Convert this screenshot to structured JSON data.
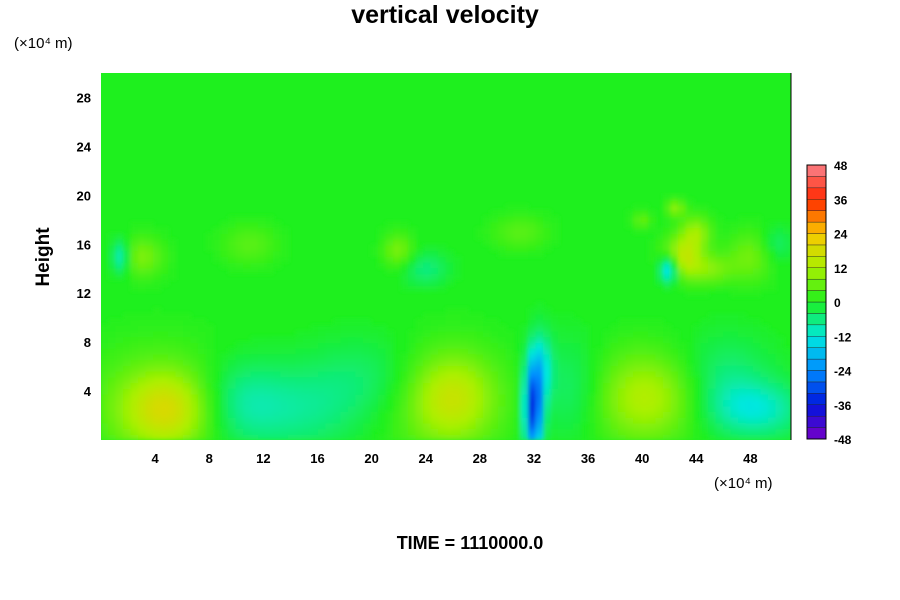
{
  "chart_data": {
    "type": "heatmap",
    "title": "vertical velocity",
    "ylabel": "Height",
    "xlabel": "",
    "x_unit": "(×10⁴ m)",
    "y_unit": "(×10⁴ m)",
    "xlim": [
      0,
      51
    ],
    "ylim": [
      0,
      30
    ],
    "x_ticks": [
      4,
      8,
      12,
      16,
      20,
      24,
      28,
      32,
      36,
      40,
      44,
      48
    ],
    "y_ticks": [
      4,
      8,
      12,
      16,
      20,
      24,
      28
    ],
    "colorbar": {
      "range": [
        -48,
        48
      ],
      "ticks": [
        48,
        36,
        24,
        12,
        0,
        -12,
        -24,
        -36,
        -48
      ]
    },
    "background_value": 0,
    "features": [
      {
        "x": 5,
        "y": 2.5,
        "value": 14,
        "sx": 2.4,
        "sy": 2.2
      },
      {
        "x": 4.5,
        "y": 3,
        "value": 6,
        "sx": 4,
        "sy": 3.5
      },
      {
        "x": 26,
        "y": 3.5,
        "value": 12,
        "sx": 2.2,
        "sy": 2.5
      },
      {
        "x": 25,
        "y": 3,
        "value": 5,
        "sx": 3.5,
        "sy": 3.5
      },
      {
        "x": 41,
        "y": 3.5,
        "value": 10,
        "sx": 2.5,
        "sy": 2.5
      },
      {
        "x": 38,
        "y": 3.5,
        "value": 5,
        "sx": 3,
        "sy": 3
      },
      {
        "x": 32,
        "y": 2.5,
        "value": -34,
        "sx": 0.45,
        "sy": 2.5
      },
      {
        "x": 32.5,
        "y": 6,
        "value": -12,
        "sx": 0.6,
        "sy": 2
      },
      {
        "x": 10,
        "y": 3,
        "value": -9,
        "sx": 2.5,
        "sy": 2.5
      },
      {
        "x": 15,
        "y": 2.5,
        "value": -6,
        "sx": 3,
        "sy": 2.5
      },
      {
        "x": 20,
        "y": 5,
        "value": -5,
        "sx": 3,
        "sy": 2.5
      },
      {
        "x": 35,
        "y": 4,
        "value": -7,
        "sx": 1.8,
        "sy": 3
      },
      {
        "x": 48.5,
        "y": 2.5,
        "value": -10,
        "sx": 2.5,
        "sy": 1.6
      },
      {
        "x": 46,
        "y": 5,
        "value": -6,
        "sx": 2.5,
        "sy": 2.5
      },
      {
        "x": 1.5,
        "y": 15,
        "value": -12,
        "sx": 0.5,
        "sy": 1
      },
      {
        "x": 3,
        "y": 15,
        "value": 8,
        "sx": 1.2,
        "sy": 1.2
      },
      {
        "x": 11,
        "y": 16,
        "value": 5,
        "sx": 1.5,
        "sy": 1.2
      },
      {
        "x": 22,
        "y": 15.5,
        "value": 8,
        "sx": 0.8,
        "sy": 1
      },
      {
        "x": 24,
        "y": 14,
        "value": -6,
        "sx": 1.2,
        "sy": 1
      },
      {
        "x": 31,
        "y": 17,
        "value": 5,
        "sx": 1.5,
        "sy": 1
      },
      {
        "x": 42,
        "y": 14,
        "value": -18,
        "sx": 0.5,
        "sy": 0.8
      },
      {
        "x": 43,
        "y": 15,
        "value": 14,
        "sx": 1,
        "sy": 1.2
      },
      {
        "x": 44,
        "y": 17,
        "value": 10,
        "sx": 0.8,
        "sy": 1
      },
      {
        "x": 45,
        "y": 14,
        "value": 8,
        "sx": 1.2,
        "sy": 0.9
      },
      {
        "x": 42.5,
        "y": 19,
        "value": 9,
        "sx": 0.5,
        "sy": 0.5
      },
      {
        "x": 40,
        "y": 18,
        "value": 6,
        "sx": 0.5,
        "sy": 0.5
      },
      {
        "x": 48,
        "y": 15,
        "value": 7,
        "sx": 1.2,
        "sy": 1.5
      },
      {
        "x": 50,
        "y": 16,
        "value": -5,
        "sx": 0.8,
        "sy": 1
      }
    ]
  },
  "footer": {
    "time_text": "TIME = 1110000.0"
  }
}
